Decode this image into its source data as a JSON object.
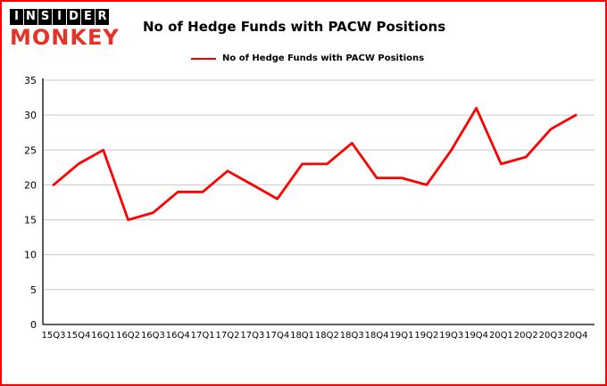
{
  "brand": {
    "line1": "INSIDER",
    "line2": "MONKEY",
    "color": "#e63329"
  },
  "header": {
    "title": "No of Hedge Funds with PACW Positions"
  },
  "legend": {
    "label": "No of Hedge Funds with PACW Positions"
  },
  "chart_data": {
    "type": "line",
    "title": "No of Hedge Funds with PACW Positions",
    "categories": [
      "15Q3",
      "15Q4",
      "16Q1",
      "16Q2",
      "16Q3",
      "16Q4",
      "17Q1",
      "17Q2",
      "17Q3",
      "17Q4",
      "18Q1",
      "18Q2",
      "18Q3",
      "18Q4",
      "19Q1",
      "19Q2",
      "19Q3",
      "19Q4",
      "20Q1",
      "20Q2",
      "20Q3",
      "20Q4"
    ],
    "series": [
      {
        "name": "No of Hedge Funds with PACW Positions",
        "color": "#ff0000",
        "values": [
          20,
          23,
          25,
          15,
          16,
          19,
          19,
          22,
          20,
          18,
          23,
          23,
          26,
          21,
          21,
          20,
          25,
          31,
          23,
          24,
          28,
          30
        ]
      }
    ],
    "xlabel": "",
    "ylabel": "",
    "ylim": [
      0,
      35
    ],
    "yticks": [
      0,
      5,
      10,
      15,
      20,
      25,
      30,
      35
    ],
    "grid": true,
    "legend_position": "top",
    "colors": {
      "grid": "#c9c9c9",
      "axis": "#000000",
      "background": "#ffffff",
      "border": "#fe0000"
    }
  }
}
